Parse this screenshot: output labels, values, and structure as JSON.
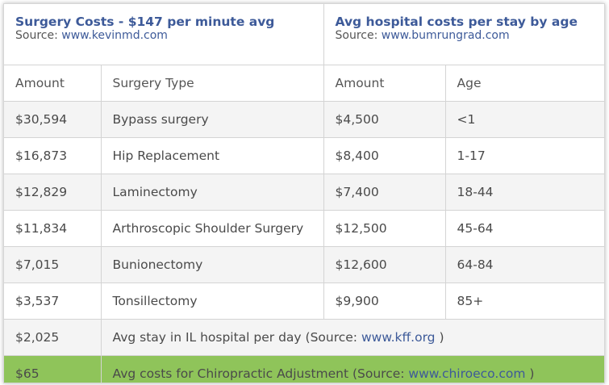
{
  "left_section": {
    "title": "Surgery Costs - $147 per minute avg",
    "source_prefix": "Source: ",
    "source_link": "www.kevinmd.com"
  },
  "right_section": {
    "title": "Avg hospital costs per stay by age",
    "source_prefix": "Source: ",
    "source_link": "www.bumrungrad.com"
  },
  "columns": [
    "Amount",
    "Surgery Type",
    "Amount",
    "Age"
  ],
  "rows": [
    {
      "surgery_amount": "$30,594",
      "surgery_type": "Bypass surgery",
      "stay_amount": "$4,500",
      "age": "<1"
    },
    {
      "surgery_amount": "$16,873",
      "surgery_type": "Hip Replacement",
      "stay_amount": "$8,400",
      "age": "1-17"
    },
    {
      "surgery_amount": "$12,829",
      "surgery_type": "Laminectomy",
      "stay_amount": "$7,400",
      "age": "18-44"
    },
    {
      "surgery_amount": "$11,834",
      "surgery_type": "Arthroscopic Shoulder Surgery",
      "stay_amount": "$12,500",
      "age": "45-64"
    },
    {
      "surgery_amount": "$7,015",
      "surgery_type": "Bunionectomy",
      "stay_amount": "$12,600",
      "age": "64-84"
    },
    {
      "surgery_amount": "$3,537",
      "surgery_type": "Tonsillectomy",
      "stay_amount": "$9,900",
      "age": "85+"
    }
  ],
  "il_row": {
    "amount": "$2,025",
    "text": "Avg stay in IL hospital per day (Source: ",
    "link": "www.kff.org",
    "suffix": " )"
  },
  "chiro_row": {
    "amount": "$65",
    "text": "Avg costs for Chiropractic Adjustment (Source: ",
    "link": "www.chiroeco.com",
    "suffix": " )",
    "highlight_color": "#8fc45a"
  },
  "colors": {
    "accent": "#3d5a99",
    "text": "#4a4a4a",
    "border": "#d4d4d4",
    "alt_row": "#f4f4f4"
  }
}
